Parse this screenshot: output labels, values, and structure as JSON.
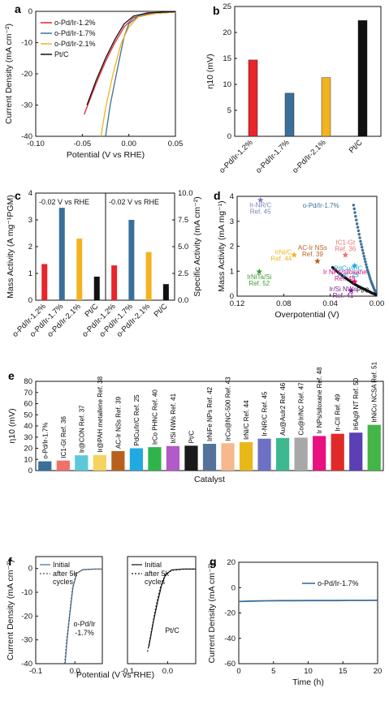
{
  "panels": {
    "a": "a",
    "b": "b",
    "c": "c",
    "d": "d",
    "e": "e",
    "f": "f",
    "g": "g"
  },
  "chart_data": [
    {
      "id": "a",
      "type": "line",
      "xlabel": "Potential (V vs RHE)",
      "ylabel": "Current Density (mA cm⁻²)",
      "xlim": [
        -0.1,
        0.05
      ],
      "ylim": [
        -40,
        0
      ],
      "xticks": [
        "-0.10",
        "-0.05",
        "0.00",
        "0.05"
      ],
      "yticks": [
        "0",
        "-10",
        "-20",
        "-30",
        "-40"
      ],
      "legend": "top-left",
      "series": [
        {
          "name": "o-Pd/Ir-1.2%",
          "color": "#e8252b",
          "points": [
            [
              -0.048,
              -33
            ],
            [
              -0.035,
              -23
            ],
            [
              -0.025,
              -16
            ],
            [
              -0.015,
              -10
            ],
            [
              -0.005,
              -5
            ],
            [
              0.005,
              -2
            ],
            [
              0.02,
              -0.8
            ],
            [
              0.05,
              -0.2
            ]
          ]
        },
        {
          "name": "o-Pd/Ir-1.7%",
          "color": "#3a6f9a",
          "points": [
            [
              -0.025,
              -40
            ],
            [
              -0.02,
              -30
            ],
            [
              -0.012,
              -18
            ],
            [
              -0.005,
              -8
            ],
            [
              0.0,
              -4
            ],
            [
              0.01,
              -1.5
            ],
            [
              0.03,
              -0.6
            ],
            [
              0.05,
              -0.2
            ]
          ]
        },
        {
          "name": "o-Pd/Ir-2.1%",
          "color": "#f2b320",
          "points": [
            [
              -0.03,
              -40
            ],
            [
              -0.025,
              -31
            ],
            [
              -0.017,
              -20
            ],
            [
              -0.008,
              -10
            ],
            [
              0.0,
              -5
            ],
            [
              0.01,
              -1.8
            ],
            [
              0.03,
              -0.6
            ],
            [
              0.05,
              -0.2
            ]
          ]
        },
        {
          "name": "Pt/C",
          "color": "#111111",
          "points": [
            [
              -0.045,
              -30
            ],
            [
              -0.035,
              -22
            ],
            [
              -0.025,
              -15
            ],
            [
              -0.015,
              -9
            ],
            [
              -0.005,
              -4
            ],
            [
              0.005,
              -1.5
            ],
            [
              0.02,
              -0.5
            ],
            [
              0.05,
              -0.1
            ]
          ]
        }
      ]
    },
    {
      "id": "b",
      "type": "bar",
      "ylabel": "η10 (mV)",
      "ylim": [
        0,
        25
      ],
      "yticks": [
        "0",
        "5",
        "10",
        "15",
        "20",
        "25"
      ],
      "categories": [
        "o-Pd/Ir-1.2%",
        "o-Pd/Ir-1.7%",
        "o-Pd/Ir-2.1%",
        "Pt/C"
      ],
      "values": [
        14.7,
        8.3,
        11.3,
        22.3
      ],
      "colors": [
        "#e8252b",
        "#3a6f9a",
        "#f2b320",
        "#111111"
      ]
    },
    {
      "id": "c",
      "type": "bar",
      "ylabel": "Mass Activity (A mg⁻¹PGM)",
      "ylabel2": "Specific Activity (mA cm⁻²)",
      "ylim": [
        0,
        4
      ],
      "y2lim": [
        0,
        10
      ],
      "yticks": [
        "0",
        "1",
        "2",
        "3",
        "4"
      ],
      "y2ticks": [
        "0.0",
        "2.5",
        "5.0",
        "7.5",
        "10.0"
      ],
      "annotations": [
        "-0.02 V vs RHE",
        "-0.02 V vs RHE"
      ],
      "categories": [
        "o-Pd/Ir-1.2%",
        "o-Pd/Ir-1.7%",
        "o-Pd/Ir-2.1%",
        "Pt/C"
      ],
      "series": [
        {
          "name": "Mass Activity",
          "values": [
            1.35,
            3.45,
            2.3,
            0.88
          ]
        },
        {
          "name": "Specific Activity",
          "values": [
            3.25,
            7.5,
            4.5,
            1.5
          ]
        }
      ],
      "colors": [
        "#e8252b",
        "#3a6f9a",
        "#f2b320",
        "#111111"
      ]
    },
    {
      "id": "d",
      "type": "scatter",
      "xlabel": "Overpotential (V)",
      "ylabel": "Mass Activity (mA mg⁻¹)",
      "xlim": [
        0.12,
        0.0
      ],
      "ylim": [
        0,
        4
      ],
      "xticks": [
        "0.12",
        "0.08",
        "0.04",
        "0.00"
      ],
      "yticks": [
        "0",
        "1",
        "2",
        "3",
        "4"
      ],
      "labels": [
        {
          "text": "o-Pd/Ir-1.7%",
          "color": "#3a6f9a"
        },
        {
          "text": "Pt/C",
          "color": "#111111"
        }
      ],
      "points": [
        {
          "label": "Ir-NR/C",
          "ref": "Ref. 45",
          "x": 0.1,
          "y": 3.85,
          "color": "#7b7fc4"
        },
        {
          "label": "IrNi/C",
          "ref": "Ref. 44",
          "x": 0.071,
          "y": 1.65,
          "color": "#f2b320"
        },
        {
          "label": "AC-Ir NSs",
          "ref": "Ref. 39",
          "x": 0.051,
          "y": 1.4,
          "color": "#b8611f"
        },
        {
          "label": "IC1-Gt",
          "ref": "Ref. 36",
          "x": 0.027,
          "y": 1.65,
          "color": "#f0706b"
        },
        {
          "label": "PdCu/Ir/C",
          "ref": "Ref. 25",
          "x": 0.019,
          "y": 1.22,
          "color": "#21a9e1"
        },
        {
          "label": "IrNiTa/Si",
          "ref": "Ref. 52",
          "x": 0.101,
          "y": 0.98,
          "color": "#3d9b35"
        },
        {
          "label": "Ir NPs/siloxane",
          "ref": "Ref. 48",
          "x": 0.019,
          "y": 0.58,
          "color": "#e0127a"
        },
        {
          "label": "Ir/Si NWs",
          "ref": "Ref. 41",
          "x": 0.022,
          "y": 0.22,
          "color": "#7a1c8f"
        }
      ],
      "curves": [
        {
          "name": "o-Pd/Ir-1.7%",
          "color": "#3a6f9a",
          "points": [
            [
              0.02,
              3.65
            ],
            [
              0.017,
              2.9
            ],
            [
              0.014,
              2.2
            ],
            [
              0.011,
              1.6
            ],
            [
              0.008,
              1.05
            ],
            [
              0.005,
              0.6
            ],
            [
              0.002,
              0.25
            ],
            [
              0.0,
              0.1
            ]
          ]
        },
        {
          "name": "Pt/C",
          "color": "#111111",
          "points": [
            [
              0.038,
              1.15
            ],
            [
              0.032,
              0.9
            ],
            [
              0.026,
              0.7
            ],
            [
              0.02,
              0.5
            ],
            [
              0.014,
              0.35
            ],
            [
              0.008,
              0.22
            ],
            [
              0.004,
              0.12
            ],
            [
              0.0,
              0.05
            ]
          ]
        }
      ]
    },
    {
      "id": "e",
      "type": "bar",
      "xlabel": "Catalyst",
      "ylabel": "η10 (mV)",
      "ylim": [
        0,
        80
      ],
      "yticks": [
        "0",
        "10",
        "20",
        "30",
        "40",
        "50",
        "60",
        "70",
        "80"
      ],
      "categories": [
        "o-Pd/Ir-1.7%",
        "IC1-Gt Ref. 36",
        "Ir@CON Ref. 37",
        "Ir@PAH metallene Ref. 38",
        "AC-Ir NSs Ref. 39",
        "PdCu/Ir/C Ref. 25",
        "IrCo PHNC Ref. 40",
        "Ir/Si NWs Ref. 41",
        "Pt/C",
        "IrNiFe NPs Ref. 42",
        "IrCo@NC-500 Ref. 43",
        "IrNi/C Ref. 44",
        "Ir-NR/C Ref. 45",
        "Au@AuIr2 Ref. 46",
        "Co@Ir/NC Ref. 47",
        "Ir NPs/siloxane Ref. 48",
        "Ir-CII Ref. 49",
        "Ir6Ag9 NT Ref. 50",
        "IrNiCu NCSA Ref. 51"
      ],
      "values": [
        8.3,
        9.0,
        13.7,
        14.0,
        17.5,
        20.0,
        21.0,
        22.0,
        22.3,
        24.0,
        24.5,
        25.5,
        28.6,
        29.2,
        29.5,
        31.0,
        33.0,
        34.0,
        41.0
      ],
      "colors": [
        "#3a6f9a",
        "#f0706b",
        "#5bc9d9",
        "#f4d35e",
        "#b8611f",
        "#21a9e1",
        "#2fb44b",
        "#b15ac8",
        "#1a1a1a",
        "#55739a",
        "#f6b88c",
        "#e8b81a",
        "#6c71c4",
        "#3db890",
        "#a8a8a8",
        "#e8117f",
        "#e02a2a",
        "#5a3fb5",
        "#44b547"
      ]
    },
    {
      "id": "f-left",
      "type": "line",
      "xlabel": "Potential (V vs RHE)",
      "ylabel": "Current Density (mA cm⁻²)",
      "xlim": [
        -0.1,
        0.07
      ],
      "ylim": [
        -40,
        5
      ],
      "xticks": [
        "-0.1",
        "0.0"
      ],
      "yticks": [
        "0",
        "-10",
        "-20",
        "-30",
        "-40"
      ],
      "legend": "top-left",
      "annotation": "o-Pd/Ir -1.7%",
      "series": [
        {
          "name": "Initial",
          "color": "#3a6f9a",
          "points": [
            [
              -0.025,
              -40
            ],
            [
              -0.02,
              -30
            ],
            [
              -0.012,
              -18
            ],
            [
              -0.005,
              -8
            ],
            [
              0.005,
              -2
            ],
            [
              0.02,
              -0.5
            ],
            [
              0.05,
              -0.2
            ],
            [
              0.07,
              -0.2
            ]
          ]
        },
        {
          "name": "after 5k cycles",
          "color": "#555555",
          "dashed": true,
          "points": [
            [
              -0.026,
              -40
            ],
            [
              -0.021,
              -30
            ],
            [
              -0.013,
              -18
            ],
            [
              -0.006,
              -8
            ],
            [
              0.004,
              -2
            ],
            [
              0.02,
              -0.6
            ],
            [
              0.05,
              -0.3
            ],
            [
              0.07,
              -0.3
            ]
          ]
        }
      ]
    },
    {
      "id": "f-right",
      "type": "line",
      "xlim": [
        -0.1,
        0.07
      ],
      "ylim": [
        -40,
        5
      ],
      "xticks": [
        "-0.1",
        "0.0"
      ],
      "legend": "top-left",
      "annotation": "Pt/C",
      "series": [
        {
          "name": "Initial",
          "color": "#111111",
          "points": [
            [
              -0.047,
              -33
            ],
            [
              -0.035,
              -22
            ],
            [
              -0.025,
              -14
            ],
            [
              -0.015,
              -7
            ],
            [
              -0.005,
              -2.5
            ],
            [
              0.01,
              -0.6
            ],
            [
              0.04,
              -0.2
            ],
            [
              0.07,
              -0.2
            ]
          ]
        },
        {
          "name": "after 5k cycles",
          "color": "#111111",
          "dashed": true,
          "points": [
            [
              -0.05,
              -35
            ],
            [
              -0.038,
              -24
            ],
            [
              -0.028,
              -15
            ],
            [
              -0.018,
              -8
            ],
            [
              -0.007,
              -3
            ],
            [
              0.01,
              -0.8
            ],
            [
              0.04,
              -0.3
            ],
            [
              0.07,
              -0.3
            ]
          ]
        }
      ]
    },
    {
      "id": "g",
      "type": "line",
      "xlabel": "Time (h)",
      "ylabel": "Current Density (mA cm⁻²)",
      "xlim": [
        0,
        20
      ],
      "ylim": [
        -60,
        20
      ],
      "xticks": [
        "0",
        "5",
        "10",
        "15",
        "20"
      ],
      "yticks": [
        "20",
        "0",
        "-20",
        "-40",
        "-60"
      ],
      "legend": "top-right",
      "series": [
        {
          "name": "o-Pd/Ir-1.7%",
          "color": "#3a6f9a",
          "points": [
            [
              0,
              -11
            ],
            [
              2,
              -10.6
            ],
            [
              4,
              -10.4
            ],
            [
              6,
              -10.3
            ],
            [
              8,
              -10.3
            ],
            [
              10,
              -10.2
            ],
            [
              12,
              -10.2
            ],
            [
              14,
              -10.2
            ],
            [
              16,
              -10.1
            ],
            [
              18,
              -10.1
            ],
            [
              20,
              -10.0
            ]
          ]
        }
      ]
    }
  ]
}
